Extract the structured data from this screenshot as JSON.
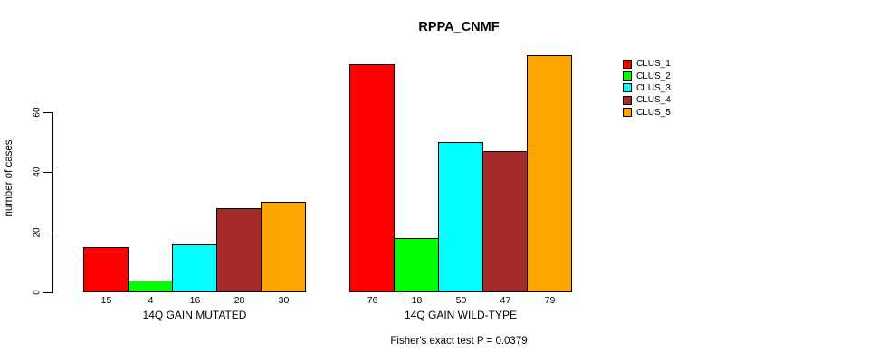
{
  "title": "RPPA_CNMF",
  "y_axis": {
    "label": "number of cases",
    "ticks": [
      0,
      20,
      40,
      60
    ]
  },
  "footer": "Fisher's exact test P = 0.0379",
  "legend": {
    "items": [
      {
        "label": "CLUS_1",
        "color": "#FF0000"
      },
      {
        "label": "CLUS_2",
        "color": "#00FF00"
      },
      {
        "label": "CLUS_3",
        "color": "#00FFFF"
      },
      {
        "label": "CLUS_4",
        "color": "#A52A2A"
      },
      {
        "label": "CLUS_5",
        "color": "#FFA500"
      }
    ]
  },
  "chart_data": {
    "type": "bar",
    "title": "RPPA_CNMF",
    "ylabel": "number of cases",
    "xlabel": "",
    "yticks": [
      0,
      20,
      40,
      60
    ],
    "ylim": [
      0,
      80
    ],
    "grid": false,
    "legend_position": "right",
    "bar_value_labels_shown": true,
    "series_names": [
      "CLUS_1",
      "CLUS_2",
      "CLUS_3",
      "CLUS_4",
      "CLUS_5"
    ],
    "series_colors": [
      "#FF0000",
      "#00FF00",
      "#00FFFF",
      "#A52A2A",
      "#FFA500"
    ],
    "groups": [
      {
        "label": "14Q GAIN MUTATED",
        "values": [
          15,
          4,
          16,
          28,
          30
        ]
      },
      {
        "label": "14Q GAIN WILD-TYPE",
        "values": [
          76,
          18,
          50,
          47,
          79
        ]
      }
    ],
    "annotation": "Fisher's exact test P = 0.0379"
  }
}
